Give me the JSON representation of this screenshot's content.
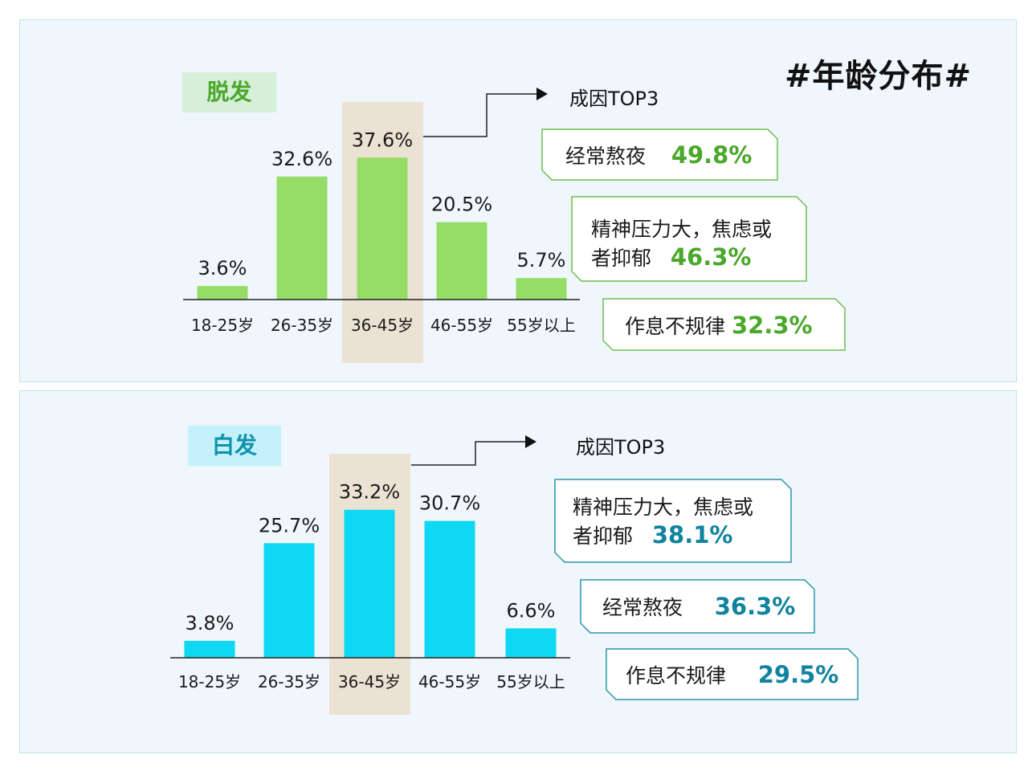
{
  "page_title": "#年龄分布#",
  "colors": {
    "hair_loss_bar": "#95dd66",
    "hair_loss_text": "#4aa82a",
    "white_hair_bar": "#0fd8f4",
    "white_hair_text": "#11839f",
    "highlight": "#ece2d3",
    "panel_bg": "#eff7fc"
  },
  "chart_data": [
    {
      "type": "bar",
      "title": "脱发",
      "categories": [
        "18-25岁",
        "26-35岁",
        "36-45岁",
        "46-55岁",
        "55岁以上"
      ],
      "values": [
        3.6,
        32.6,
        37.6,
        20.5,
        5.7
      ],
      "value_labels": [
        "3.6%",
        "32.6%",
        "37.6%",
        "20.5%",
        "5.7%"
      ],
      "highlighted_category": "36-45岁",
      "unit": "%",
      "legend": "none",
      "grid": false
    },
    {
      "type": "bar",
      "title": "白发",
      "categories": [
        "18-25岁",
        "26-35岁",
        "36-45岁",
        "46-55岁",
        "55岁以上"
      ],
      "values": [
        3.8,
        25.7,
        33.2,
        30.7,
        6.6
      ],
      "value_labels": [
        "3.8%",
        "25.7%",
        "33.2%",
        "30.7%",
        "6.6%"
      ],
      "highlighted_category": "36-45岁",
      "unit": "%",
      "legend": "none",
      "grid": false
    }
  ],
  "hair_loss_causes": {
    "heading": "成因TOP3",
    "items": [
      {
        "lines": [
          "经常熬夜"
        ],
        "pct": "49.8%"
      },
      {
        "lines": [
          "精神压力大，焦虑或",
          "者抑郁"
        ],
        "pct": "46.3%"
      },
      {
        "lines": [
          "作息不规律"
        ],
        "pct": "32.3%"
      }
    ]
  },
  "white_hair_causes": {
    "heading": "成因TOP3",
    "items": [
      {
        "lines": [
          "精神压力大，焦虑或",
          "者抑郁"
        ],
        "pct": "38.1%"
      },
      {
        "lines": [
          "经常熬夜"
        ],
        "pct": "36.3%"
      },
      {
        "lines": [
          "作息不规律"
        ],
        "pct": "29.5%"
      }
    ]
  }
}
